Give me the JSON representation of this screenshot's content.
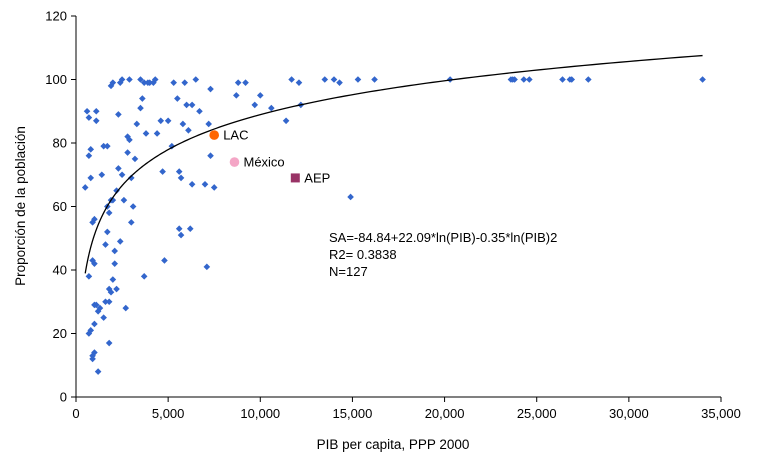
{
  "chart_data": {
    "type": "scatter",
    "xlabel": "PIB per capita, PPP 2000",
    "ylabel": "Proporción de la población",
    "xlim": [
      0,
      35000
    ],
    "ylim": [
      0,
      120
    ],
    "xticks": [
      0,
      5000,
      10000,
      15000,
      20000,
      25000,
      30000,
      35000
    ],
    "xtick_labels": [
      "0",
      "5,000",
      "10,000",
      "15,000",
      "20,000",
      "25,000",
      "30,000",
      "35,000"
    ],
    "yticks": [
      0,
      20,
      40,
      60,
      80,
      100,
      120
    ],
    "ytick_labels": [
      "0",
      "20",
      "40",
      "60",
      "80",
      "100",
      "120"
    ],
    "grid": false,
    "legend": "none",
    "series": [
      {
        "marker": "diamond",
        "color": "#3366cc",
        "points": [
          [
            500,
            66
          ],
          [
            600,
            90
          ],
          [
            700,
            76
          ],
          [
            700,
            88
          ],
          [
            800,
            69
          ],
          [
            800,
            78
          ],
          [
            900,
            55
          ],
          [
            900,
            43
          ],
          [
            1000,
            42
          ],
          [
            1000,
            56
          ],
          [
            700,
            38
          ],
          [
            700,
            20
          ],
          [
            800,
            21
          ],
          [
            900,
            13
          ],
          [
            900,
            12
          ],
          [
            1000,
            14
          ],
          [
            1000,
            23
          ],
          [
            1000,
            29
          ],
          [
            1100,
            29
          ],
          [
            1100,
            87
          ],
          [
            1100,
            90
          ],
          [
            1200,
            8
          ],
          [
            1200,
            27
          ],
          [
            1300,
            28
          ],
          [
            1400,
            70
          ],
          [
            1500,
            79
          ],
          [
            1500,
            25
          ],
          [
            1600,
            30
          ],
          [
            1600,
            48
          ],
          [
            1700,
            79
          ],
          [
            1700,
            52
          ],
          [
            1700,
            60
          ],
          [
            1800,
            58
          ],
          [
            1800,
            17
          ],
          [
            1800,
            30
          ],
          [
            1800,
            34
          ],
          [
            1900,
            62
          ],
          [
            1900,
            98
          ],
          [
            1900,
            33
          ],
          [
            2000,
            37
          ],
          [
            2000,
            99
          ],
          [
            2000,
            62
          ],
          [
            2100,
            42
          ],
          [
            2100,
            46
          ],
          [
            2200,
            34
          ],
          [
            2200,
            65
          ],
          [
            2300,
            72
          ],
          [
            2300,
            89
          ],
          [
            2400,
            99
          ],
          [
            2400,
            49
          ],
          [
            2500,
            100
          ],
          [
            2500,
            70
          ],
          [
            2600,
            62
          ],
          [
            2700,
            28
          ],
          [
            2800,
            82
          ],
          [
            2800,
            77
          ],
          [
            2900,
            100
          ],
          [
            2900,
            81
          ],
          [
            3000,
            55
          ],
          [
            3000,
            69
          ],
          [
            3100,
            60
          ],
          [
            3200,
            75
          ],
          [
            3300,
            86
          ],
          [
            3500,
            91
          ],
          [
            3500,
            100
          ],
          [
            3600,
            94
          ],
          [
            3700,
            99
          ],
          [
            3700,
            38
          ],
          [
            3800,
            83
          ],
          [
            3900,
            99
          ],
          [
            4000,
            99
          ],
          [
            4200,
            99
          ],
          [
            4300,
            100
          ],
          [
            4400,
            83
          ],
          [
            4600,
            87
          ],
          [
            4700,
            71
          ],
          [
            4800,
            43
          ],
          [
            5000,
            87
          ],
          [
            5200,
            79
          ],
          [
            5300,
            99
          ],
          [
            5500,
            94
          ],
          [
            5600,
            71
          ],
          [
            5600,
            53
          ],
          [
            5700,
            51
          ],
          [
            5700,
            69
          ],
          [
            5800,
            86
          ],
          [
            5900,
            99
          ],
          [
            6000,
            92
          ],
          [
            6100,
            84
          ],
          [
            6200,
            53
          ],
          [
            6300,
            92
          ],
          [
            6300,
            67
          ],
          [
            6500,
            100
          ],
          [
            6700,
            90
          ],
          [
            7000,
            67
          ],
          [
            7100,
            41
          ],
          [
            7200,
            86
          ],
          [
            7300,
            97
          ],
          [
            7300,
            76
          ],
          [
            7500,
            66
          ],
          [
            8700,
            95
          ],
          [
            8800,
            99
          ],
          [
            9200,
            99
          ],
          [
            9700,
            92
          ],
          [
            10000,
            95
          ],
          [
            10600,
            91
          ],
          [
            11400,
            87
          ],
          [
            11700,
            100
          ],
          [
            12100,
            99
          ],
          [
            12200,
            92
          ],
          [
            13500,
            100
          ],
          [
            14000,
            100
          ],
          [
            14300,
            99
          ],
          [
            14900,
            63
          ],
          [
            15300,
            100
          ],
          [
            16200,
            100
          ],
          [
            20300,
            100
          ],
          [
            23600,
            100
          ],
          [
            23700,
            100
          ],
          [
            23800,
            100
          ],
          [
            24300,
            100
          ],
          [
            24600,
            100
          ],
          [
            26400,
            100
          ],
          [
            26800,
            100
          ],
          [
            26900,
            100
          ],
          [
            27800,
            100
          ],
          [
            34000,
            100
          ]
        ]
      }
    ],
    "highlights": [
      {
        "label": "LAC",
        "x": 7500,
        "y": 82.5,
        "marker": "circle",
        "color": "#ff6600"
      },
      {
        "label": "México",
        "x": 8600,
        "y": 74,
        "marker": "circle",
        "color": "#f4a6c6"
      },
      {
        "label": "AEP",
        "x": 11900,
        "y": 69,
        "marker": "square",
        "color": "#993366"
      }
    ],
    "fit": {
      "equation_x_range": [
        500,
        34000
      ],
      "text_lines": [
        "SA=-84.84+22.09*ln(PIB)-0.35*ln(PIB)2",
        "R2= 0.3838",
        "N=127"
      ]
    }
  }
}
